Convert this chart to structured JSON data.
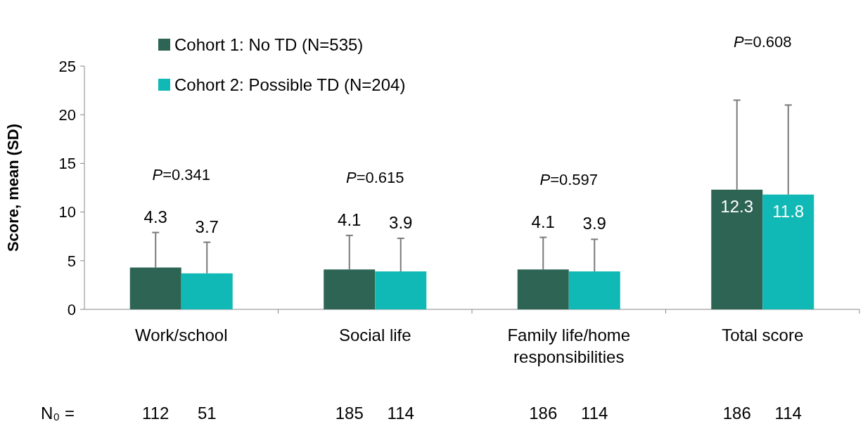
{
  "chart_data": {
    "type": "bar",
    "ylabel": "Score, mean (SD)",
    "categories": [
      "Work/school",
      "Social life",
      "Family life/home responsibilities",
      "Total score"
    ],
    "series": [
      {
        "name": "Cohort 1: No TD (N=535)",
        "color": "#2d6454",
        "values": [
          4.3,
          4.1,
          4.1,
          12.3
        ],
        "value_labels": [
          "4.3",
          "4.1",
          "4.1",
          "12.3"
        ],
        "errors": [
          [
            4.3,
            7.9
          ],
          [
            4.1,
            7.6
          ],
          [
            4.1,
            7.4
          ],
          [
            12.3,
            21.5
          ]
        ]
      },
      {
        "name": "Cohort 2: Possible TD (N=204)",
        "color": "#10b9b5",
        "values": [
          3.7,
          3.9,
          3.9,
          11.8
        ],
        "value_labels": [
          "3.7",
          "3.9",
          "3.9",
          "11.8"
        ],
        "errors": [
          [
            3.7,
            6.9
          ],
          [
            3.9,
            7.3
          ],
          [
            3.9,
            7.2
          ],
          [
            11.8,
            21.0
          ]
        ]
      }
    ],
    "ylim": [
      0,
      25
    ],
    "yticks": [
      0,
      5,
      10,
      15,
      20,
      25
    ],
    "legend": "top left",
    "annotations": [
      "P=0.341",
      "P=0.615",
      "P=0.597",
      "P=0.608",
      "N₀ =",
      "112",
      "51",
      "185",
      "114",
      "186",
      "114",
      "186",
      "114"
    ]
  }
}
